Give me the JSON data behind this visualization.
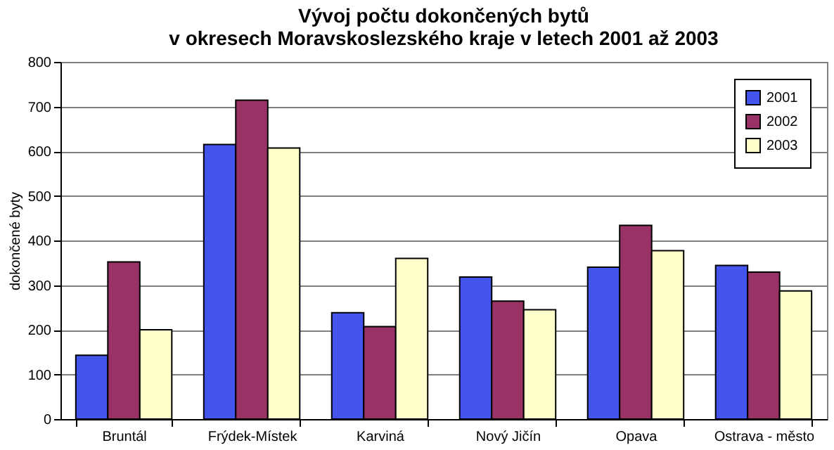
{
  "chart_data": {
    "type": "bar",
    "title": "Vývoj počtu dokončených bytů\nv okresech Moravskoslezského kraje v letech 2001 až 2003",
    "ylabel": "dokončené byty",
    "categories": [
      "Bruntál",
      "Frýdek-Místek",
      "Karviná",
      "Nový Jičín",
      "Opava",
      "Ostrava - město"
    ],
    "series": [
      {
        "name": "2001",
        "color": "#4455ee",
        "values": [
          143,
          615,
          238,
          318,
          340,
          344
        ]
      },
      {
        "name": "2002",
        "color": "#993366",
        "values": [
          352,
          714,
          207,
          264,
          434,
          329
        ]
      },
      {
        "name": "2003",
        "color": "#ffffcc",
        "values": [
          200,
          607,
          360,
          245,
          377,
          287
        ]
      }
    ],
    "ylim": [
      0,
      800
    ],
    "yticks": [
      0,
      100,
      200,
      300,
      400,
      500,
      600,
      700,
      800
    ],
    "grid": "y",
    "legend": "top right"
  }
}
